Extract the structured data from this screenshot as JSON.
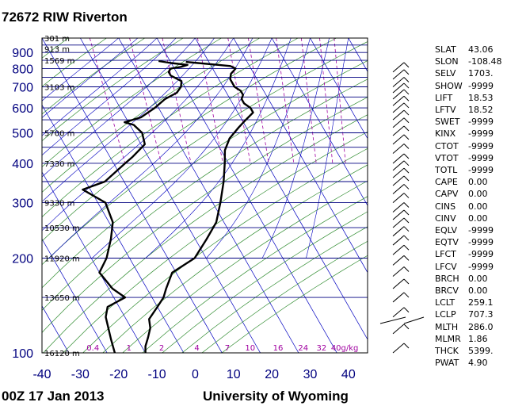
{
  "header": {
    "station_title": "72672 RIW Riverton",
    "timestamp": "00Z 17 Jan 2013",
    "source": "University of Wyoming"
  },
  "colors": {
    "isobar": "#000080",
    "isotherm": "#0000c0",
    "dry_adiabat": "#2e8b2e",
    "mixing_ratio": "#a000a0",
    "sounding": "#000000",
    "axis_text": "#00007f"
  },
  "chart_data": {
    "type": "line",
    "title": "72672 RIW Riverton",
    "xlim": [
      -40,
      45
    ],
    "ylim": [
      1000,
      100
    ],
    "y_scale": "log",
    "x_ticks": [
      "-40",
      "-30",
      "-20",
      "-10",
      "0",
      "10",
      "20",
      "30",
      "40"
    ],
    "y_ticks": [
      "100",
      "200",
      "300",
      "400",
      "500",
      "600",
      "700",
      "800",
      "900"
    ],
    "height_labels": [
      {
        "p": 100,
        "text": "16120 m"
      },
      {
        "p": 150,
        "text": "13650 m"
      },
      {
        "p": 200,
        "text": "11920 m"
      },
      {
        "p": 250,
        "text": "10530 m"
      },
      {
        "p": 300,
        "text": "9330 m"
      },
      {
        "p": 400,
        "text": "7330 m"
      },
      {
        "p": 500,
        "text": "5700 m"
      },
      {
        "p": 700,
        "text": "3103 m"
      },
      {
        "p": 850,
        "text": "1569 m"
      },
      {
        "p": 925,
        "text": "913 m"
      },
      {
        "p": 1000,
        "text": "301 m"
      }
    ],
    "mixing_ratio_labels": [
      "0.4",
      "1",
      "2",
      "4",
      "7",
      "10",
      "16",
      "24",
      "32",
      "40g/kg"
    ],
    "series": [
      {
        "name": "Temperature",
        "points": [
          [
            -6,
            840
          ],
          [
            -3,
            833
          ],
          [
            2,
            822
          ],
          [
            5,
            815
          ],
          [
            6,
            800
          ],
          [
            4,
            770
          ],
          [
            3,
            740
          ],
          [
            3,
            700
          ],
          [
            4,
            680
          ],
          [
            4,
            660
          ],
          [
            3,
            640
          ],
          [
            3,
            620
          ],
          [
            4,
            600
          ],
          [
            4,
            580
          ],
          [
            1,
            550
          ],
          [
            -2,
            520
          ],
          [
            -6,
            480
          ],
          [
            -9,
            440
          ],
          [
            -11,
            400
          ],
          [
            -14,
            350
          ],
          [
            -18,
            300
          ],
          [
            -22,
            260
          ],
          [
            -27,
            230
          ],
          [
            -33,
            200
          ],
          [
            -41,
            180
          ],
          [
            -45,
            160
          ],
          [
            -47,
            150
          ],
          [
            -50,
            140
          ],
          [
            -54,
            128
          ],
          [
            -55,
            120
          ],
          [
            -57,
            112
          ],
          [
            -59,
            105
          ],
          [
            -60,
            100
          ]
        ]
      },
      {
        "name": "Dewpoint",
        "points": [
          [
            -13,
            845
          ],
          [
            -10,
            833
          ],
          [
            -6,
            822
          ],
          [
            -8,
            810
          ],
          [
            -11,
            800
          ],
          [
            -12,
            780
          ],
          [
            -12,
            760
          ],
          [
            -10,
            730
          ],
          [
            -11,
            700
          ],
          [
            -13,
            670
          ],
          [
            -17,
            640
          ],
          [
            -21,
            600
          ],
          [
            -26,
            560
          ],
          [
            -31,
            540
          ],
          [
            -29,
            530
          ],
          [
            -28,
            500
          ],
          [
            -29,
            460
          ],
          [
            -34,
            420
          ],
          [
            -37,
            400
          ],
          [
            -45,
            350
          ],
          [
            -52,
            330
          ],
          [
            -48,
            300
          ],
          [
            -49,
            260
          ],
          [
            -52,
            230
          ],
          [
            -56,
            200
          ],
          [
            -60,
            180
          ],
          [
            -59,
            160
          ],
          [
            -57,
            150
          ],
          [
            -63,
            140
          ],
          [
            -65,
            130
          ],
          [
            -67,
            110
          ],
          [
            -68,
            100
          ]
        ]
      }
    ],
    "wind_barbs_visible": true
  },
  "indices": [
    {
      "key": "SLAT",
      "value": "43.06"
    },
    {
      "key": "SLON",
      "value": "-108.48"
    },
    {
      "key": "SELV",
      "value": "1703."
    },
    {
      "key": "SHOW",
      "value": "-9999"
    },
    {
      "key": "LIFT",
      "value": "18.53"
    },
    {
      "key": "LFTV",
      "value": "18.52"
    },
    {
      "key": "SWET",
      "value": "-9999"
    },
    {
      "key": "KINX",
      "value": "-9999"
    },
    {
      "key": "CTOT",
      "value": "-9999"
    },
    {
      "key": "VTOT",
      "value": "-9999"
    },
    {
      "key": "TOTL",
      "value": "-9999"
    },
    {
      "key": "CAPE",
      "value": "0.00"
    },
    {
      "key": "CAPV",
      "value": "0.00"
    },
    {
      "key": "CINS",
      "value": "0.00"
    },
    {
      "key": "CINV",
      "value": "0.00"
    },
    {
      "key": "EQLV",
      "value": "-9999"
    },
    {
      "key": "EQTV",
      "value": "-9999"
    },
    {
      "key": "LFCT",
      "value": "-9999"
    },
    {
      "key": "LFCV",
      "value": "-9999"
    },
    {
      "key": "BRCH",
      "value": "0.00"
    },
    {
      "key": "BRCV",
      "value": "0.00"
    },
    {
      "key": "LCLT",
      "value": "259.1"
    },
    {
      "key": "LCLP",
      "value": "707.3"
    },
    {
      "key": "MLTH",
      "value": "286.0"
    },
    {
      "key": "MLMR",
      "value": "1.86"
    },
    {
      "key": "THCK",
      "value": "5399."
    },
    {
      "key": "PWAT",
      "value": "4.90"
    }
  ]
}
